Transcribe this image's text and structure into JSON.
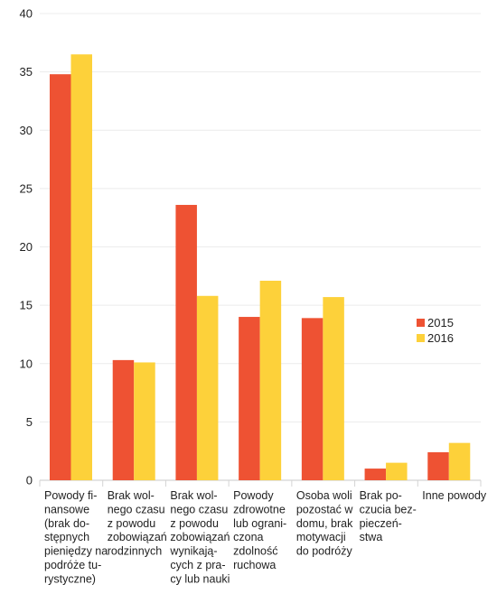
{
  "chart_data": {
    "type": "bar",
    "ylim": [
      0,
      40
    ],
    "yticks": [
      0,
      5,
      10,
      15,
      20,
      25,
      30,
      35,
      40
    ],
    "grid": true,
    "legend_position": "right",
    "categories": [
      [
        "Powody fi-",
        "nansowe",
        "(brak do-",
        "stępnych",
        "pieniędzy na",
        "podróże tu-",
        "rystyczne)"
      ],
      [
        "Brak wol-",
        "nego czasu",
        "z powodu",
        "zobowiązań",
        "rodzinnych"
      ],
      [
        "Brak wol-",
        "nego czasu",
        "z powodu",
        "zobowiązań",
        "wynikają-",
        "cych z pra-",
        "cy lub nauki"
      ],
      [
        "Powody",
        "zdrowotne",
        "lub ograni-",
        "czona",
        "zdolność",
        "ruchowa"
      ],
      [
        "Osoba woli",
        "pozostać w",
        "domu, brak",
        "motywacji",
        "do podróży"
      ],
      [
        "Brak po-",
        "czucia bez-",
        "pieczeń-",
        "stwa"
      ],
      [
        "Inne powody"
      ]
    ],
    "series": [
      {
        "name": "2015",
        "color": "#ee5233",
        "values": [
          34.8,
          10.3,
          23.6,
          14.0,
          13.9,
          1.0,
          2.4
        ]
      },
      {
        "name": "2016",
        "color": "#fdd13a",
        "values": [
          36.5,
          10.1,
          15.8,
          17.1,
          15.7,
          1.5,
          3.2
        ]
      }
    ]
  }
}
